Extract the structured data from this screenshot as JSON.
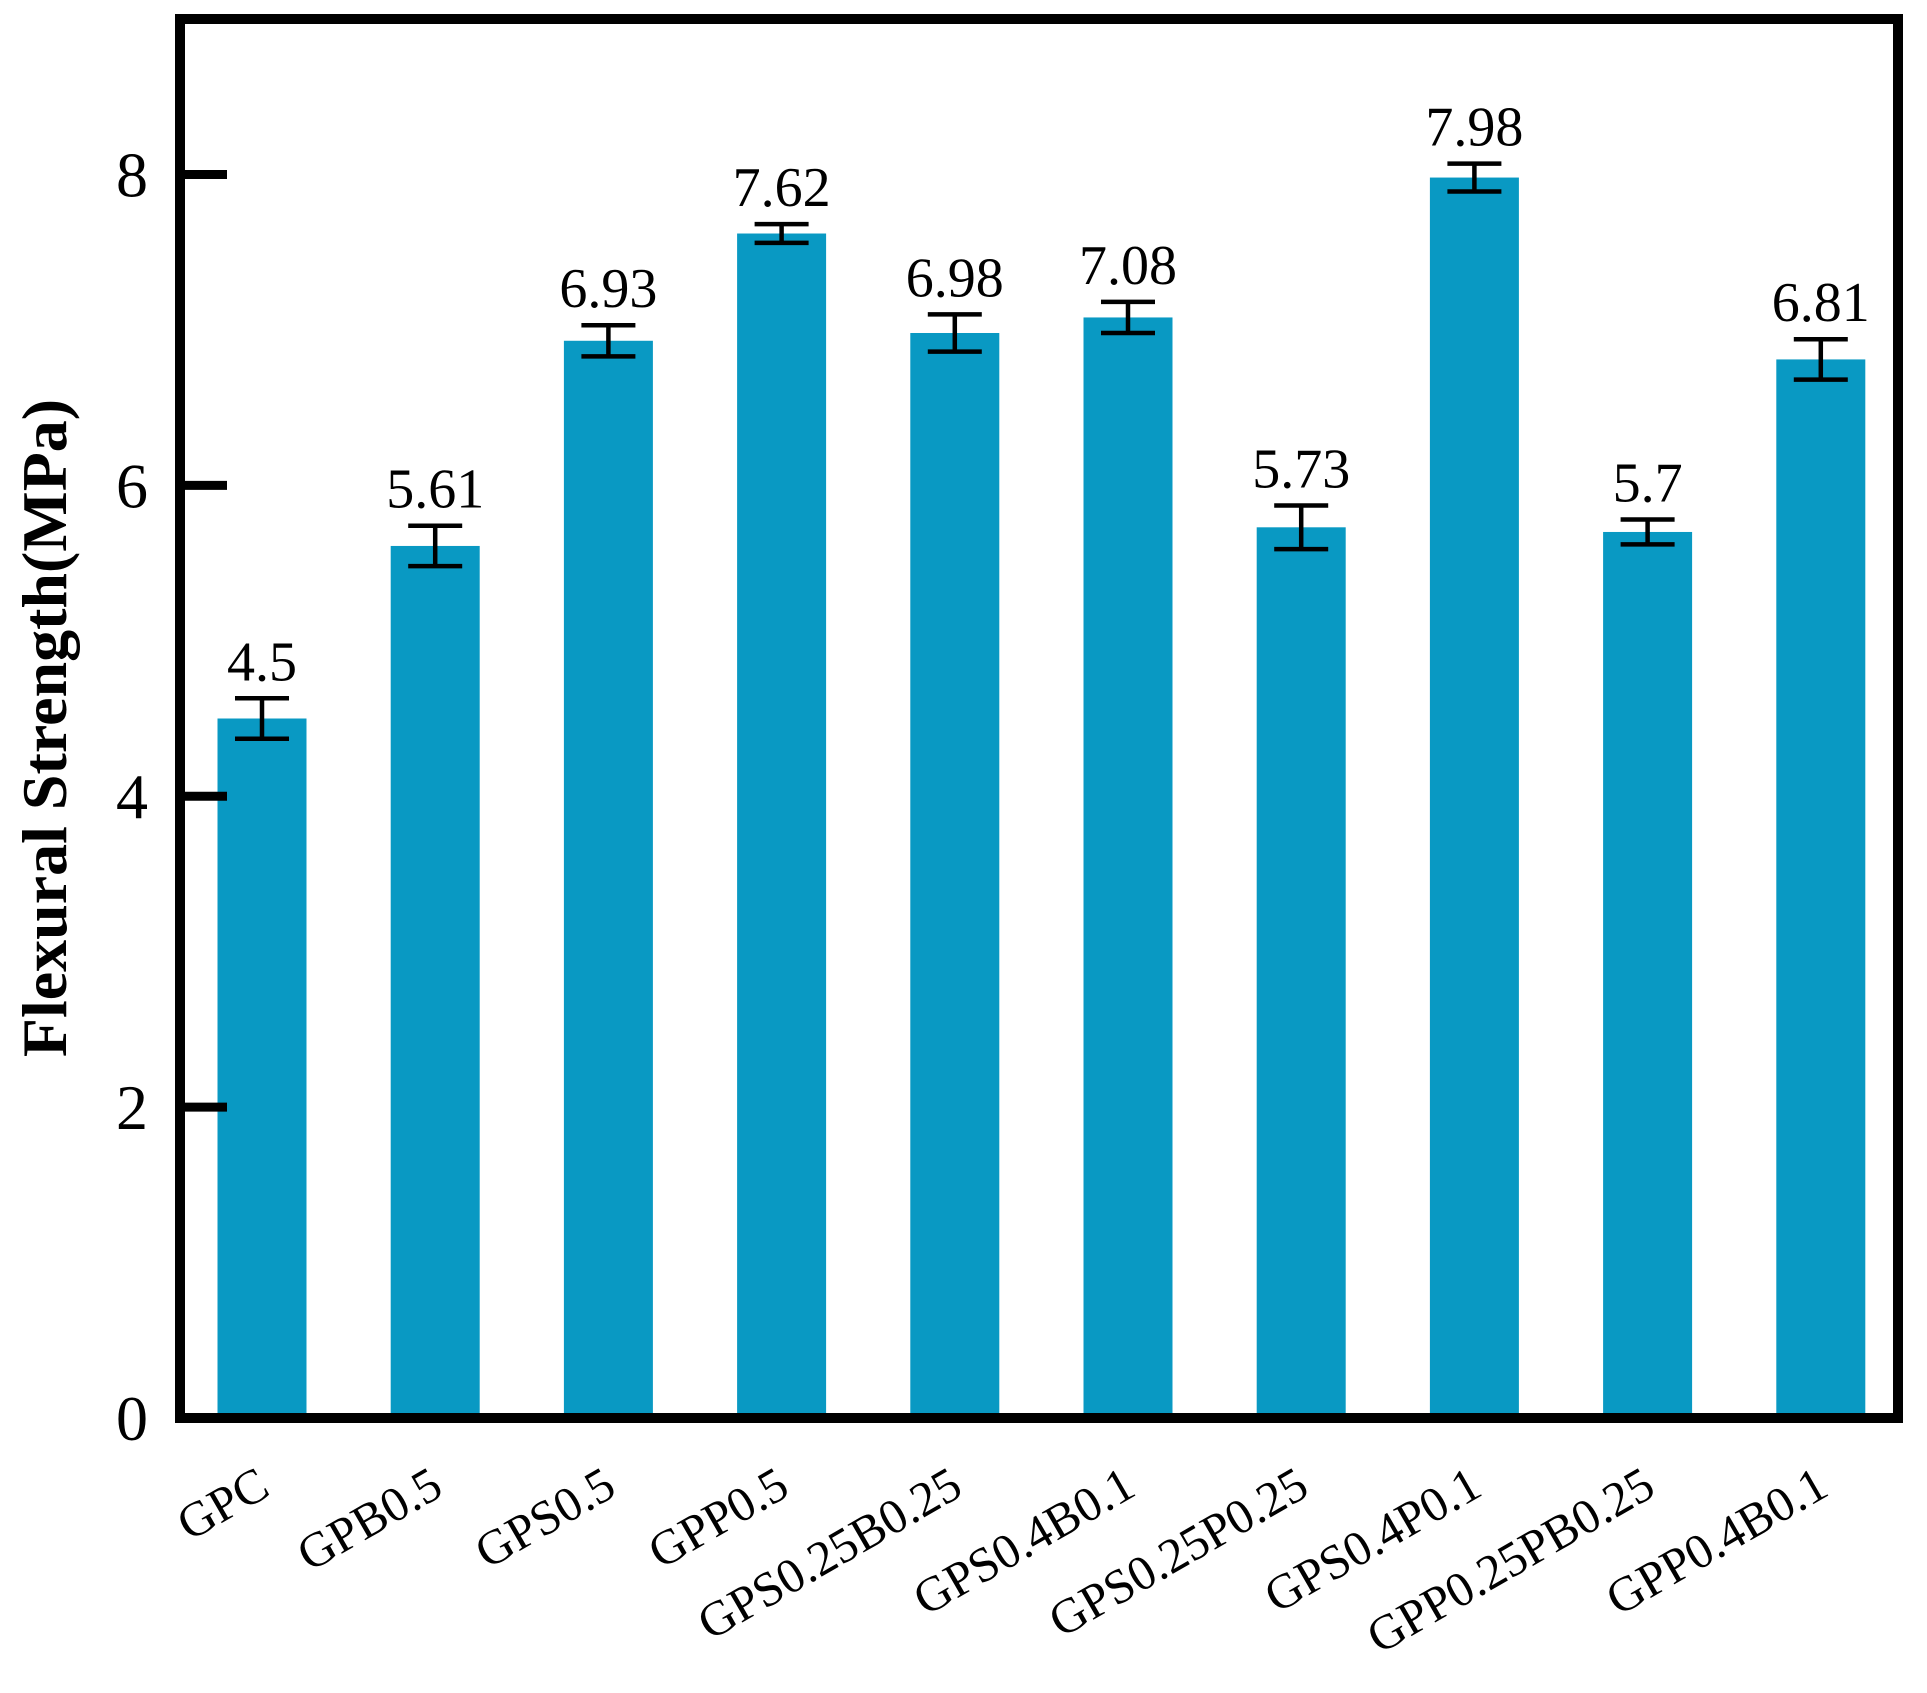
{
  "chart_data": {
    "type": "bar",
    "title": "",
    "categories": [
      "GPC",
      "GPB0.5",
      "GPS0.5",
      "GPP0.5",
      "GPS0.25B0.25",
      "GPS0.4B0.1",
      "GPS0.25P0.25",
      "GPS0.4P0.1",
      "GPP0.25PB0.25",
      "GPP0.4B0.1"
    ],
    "values": [
      4.5,
      5.61,
      6.93,
      7.62,
      6.98,
      7.08,
      5.73,
      7.98,
      5.7,
      6.81
    ],
    "value_labels": [
      "4.5",
      "5.61",
      "6.93",
      "7.62",
      "6.98",
      "7.08",
      "5.73",
      "7.98",
      "5.7",
      "6.81"
    ],
    "errors": [
      0.13,
      0.13,
      0.1,
      0.06,
      0.12,
      0.1,
      0.14,
      0.09,
      0.08,
      0.13
    ],
    "xlabel": "",
    "ylabel": "Flexural Strength(MPa)",
    "yticks": [
      0,
      2,
      4,
      6,
      8
    ],
    "ytick_labels": [
      "0",
      "2",
      "4",
      "6",
      "8"
    ],
    "ylim": [
      0,
      9
    ],
    "grid": false,
    "legend": "none",
    "error_bars": "both",
    "x_label_rotation_deg": 30,
    "colors": {
      "bar_fill": "#0999C3",
      "axis": "#000000",
      "text": "#000000",
      "background": "#ffffff"
    }
  }
}
